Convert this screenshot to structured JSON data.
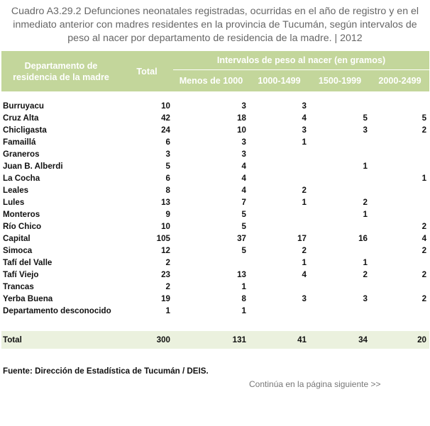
{
  "title": "Cuadro A3.29.2 Defunciones neonatales registradas, ocurridas en el año de registro y en el inmediato anterior con madres residentes en la provincia de Tucumán, según intervalos de peso al nacer por departamento de residencia de la madre. | 2012",
  "header": {
    "department": "Departamento de residencia de la madre",
    "total": "Total",
    "intervals": "Intervalos de peso al nacer (en gramos)",
    "sub": [
      "Menos de 1000",
      "1000-1499",
      "1500-1999",
      "2000-2499"
    ]
  },
  "rows": [
    {
      "name": "Burruyacu",
      "total": "10",
      "c1": "3",
      "c2": "3",
      "c3": "",
      "c4": ""
    },
    {
      "name": "Cruz Alta",
      "total": "42",
      "c1": "18",
      "c2": "4",
      "c3": "5",
      "c4": "5"
    },
    {
      "name": "Chicligasta",
      "total": "24",
      "c1": "10",
      "c2": "3",
      "c3": "3",
      "c4": "2"
    },
    {
      "name": "Famaillá",
      "total": "6",
      "c1": "3",
      "c2": "1",
      "c3": "",
      "c4": ""
    },
    {
      "name": "Graneros",
      "total": "3",
      "c1": "3",
      "c2": "",
      "c3": "",
      "c4": ""
    },
    {
      "name": "Juan B. Alberdi",
      "total": "5",
      "c1": "4",
      "c2": "",
      "c3": "1",
      "c4": ""
    },
    {
      "name": "La Cocha",
      "total": "6",
      "c1": "4",
      "c2": "",
      "c3": "",
      "c4": "1"
    },
    {
      "name": "Leales",
      "total": "8",
      "c1": "4",
      "c2": "2",
      "c3": "",
      "c4": ""
    },
    {
      "name": "Lules",
      "total": "13",
      "c1": "7",
      "c2": "1",
      "c3": "2",
      "c4": ""
    },
    {
      "name": "Monteros",
      "total": "9",
      "c1": "5",
      "c2": "",
      "c3": "1",
      "c4": ""
    },
    {
      "name": "Río Chico",
      "total": "10",
      "c1": "5",
      "c2": "",
      "c3": "",
      "c4": "2"
    },
    {
      "name": "Capital",
      "total": "105",
      "c1": "37",
      "c2": "17",
      "c3": "16",
      "c4": "4"
    },
    {
      "name": "Simoca",
      "total": "12",
      "c1": "5",
      "c2": "2",
      "c3": "",
      "c4": "2"
    },
    {
      "name": "Tafí del Valle",
      "total": "2",
      "c1": "",
      "c2": "1",
      "c3": "1",
      "c4": ""
    },
    {
      "name": "Tafí Viejo",
      "total": "23",
      "c1": "13",
      "c2": "4",
      "c3": "2",
      "c4": "2"
    },
    {
      "name": "Trancas",
      "total": "2",
      "c1": "1",
      "c2": "",
      "c3": "",
      "c4": ""
    },
    {
      "name": "Yerba Buena",
      "total": "19",
      "c1": "8",
      "c2": "3",
      "c3": "3",
      "c4": "2"
    },
    {
      "name": "Departamento desconocido",
      "total": "1",
      "c1": "1",
      "c2": "",
      "c3": "",
      "c4": ""
    }
  ],
  "total_row": {
    "name": "Total",
    "total": "300",
    "c1": "131",
    "c2": "41",
    "c3": "34",
    "c4": "20"
  },
  "source": "Fuente: Dirección de Estadística de Tucumán / DEIS.",
  "continue": "Continúa en la página siguiente >>"
}
